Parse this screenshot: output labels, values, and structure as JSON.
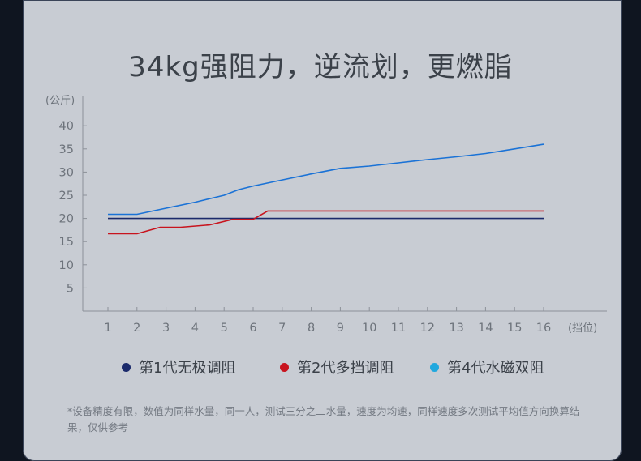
{
  "chart_data": {
    "type": "line",
    "title": "34kg强阻力，逆流划，更燃脂",
    "ylabel": "(公斤)",
    "xlabel": "(挡位)",
    "ylim": [
      0,
      45
    ],
    "yticks": [
      5,
      10,
      15,
      20,
      25,
      30,
      35,
      40
    ],
    "categories": [
      1,
      2,
      3,
      4,
      5,
      6,
      7,
      8,
      9,
      10,
      11,
      12,
      13,
      14,
      15,
      16
    ],
    "grid": false,
    "legend_position": "bottom",
    "series": [
      {
        "name": "第1代无极调阻",
        "color": "#1b2a6b",
        "x": [
          1,
          16
        ],
        "values": [
          20,
          20
        ]
      },
      {
        "name": "第2代多挡调阻",
        "color": "#c8141e",
        "x": [
          1,
          2,
          2.8,
          3.5,
          4.5,
          5.3,
          6,
          6.5,
          16
        ],
        "values": [
          16.7,
          16.7,
          18.1,
          18.1,
          18.6,
          19.8,
          19.8,
          21.6,
          21.6
        ]
      },
      {
        "name": "第4代水磁双阻",
        "color": "#1a72d6",
        "legend_color": "#21a8de",
        "x": [
          1,
          2,
          3,
          4,
          5,
          5.5,
          6,
          7,
          8,
          9,
          10,
          11,
          12,
          13,
          14,
          15,
          16
        ],
        "values": [
          20.9,
          20.9,
          22.2,
          23.5,
          25.0,
          26.2,
          27.0,
          28.3,
          29.6,
          30.8,
          31.3,
          32.0,
          32.7,
          33.3,
          34.0,
          35.0,
          36.0
        ]
      }
    ]
  },
  "footnote": "*设备精度有限，数值为同样水量，同一人，测试三分之二水量，速度为均速，同样速度多次测试平均值方向换算结果，仅供参考"
}
